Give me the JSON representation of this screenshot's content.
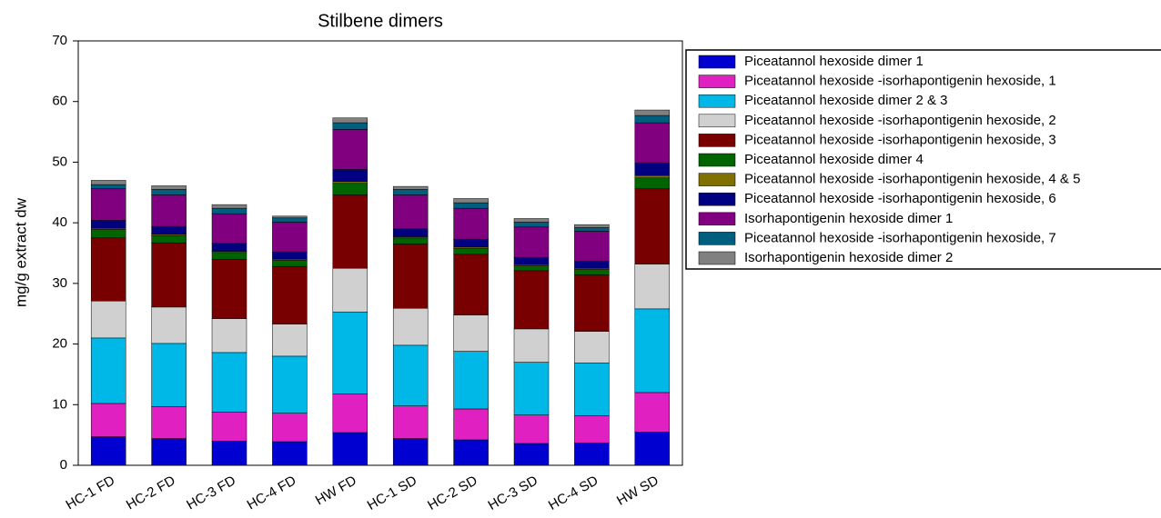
{
  "chart_data": {
    "type": "stacked_bar",
    "title": "Stilbene dimers",
    "ylabel": "mg/g extract dw",
    "categories": [
      "HC-1 FD",
      "HC-2 FD",
      "HC-3 FD",
      "HC-4 FD",
      "HW FD",
      "HC-1 SD",
      "HC-2 SD",
      "HC-3 SD",
      "HC-4 SD",
      "HW SD"
    ],
    "ylim": [
      0,
      70
    ],
    "yticks": [
      0,
      10,
      20,
      30,
      40,
      50,
      60,
      70
    ],
    "legend": "outside-right",
    "series": [
      {
        "name": "Piceatannol hexoside dimer 1",
        "color": "#0000d0",
        "values": [
          4.7,
          4.4,
          4.0,
          3.9,
          5.4,
          4.4,
          4.2,
          3.6,
          3.7,
          5.5
        ]
      },
      {
        "name": "Piceatannol hexoside -isorhapontigenin hexoside, 1",
        "color": "#e020c0",
        "values": [
          5.5,
          5.3,
          4.8,
          4.7,
          6.4,
          5.4,
          5.1,
          4.7,
          4.5,
          6.5
        ]
      },
      {
        "name": "Piceatannol hexoside dimer 2 & 3",
        "color": "#00b8e8",
        "values": [
          10.8,
          10.4,
          9.8,
          9.4,
          13.5,
          10.0,
          9.5,
          8.7,
          8.7,
          13.8
        ]
      },
      {
        "name": "Piceatannol hexoside -isorhapontigenin hexoside, 2",
        "color": "#d0d0d0",
        "values": [
          6.1,
          6.0,
          5.6,
          5.3,
          7.2,
          6.1,
          6.0,
          5.5,
          5.2,
          7.4
        ]
      },
      {
        "name": "Piceatannol hexoside -isorhapontigenin hexoside, 3",
        "color": "#780000",
        "values": [
          10.4,
          10.6,
          9.8,
          9.5,
          12.1,
          10.6,
          10.0,
          9.6,
          9.3,
          12.4
        ]
      },
      {
        "name": "Piceatannol hexoside dimer 4",
        "color": "#006400",
        "values": [
          1.4,
          1.2,
          1.1,
          1.0,
          1.9,
          1.0,
          1.0,
          0.8,
          0.9,
          1.8
        ]
      },
      {
        "name": "Piceatannol hexoside -isorhapontigenin hexoside, 4 & 5",
        "color": "#807000",
        "values": [
          0.2,
          0.2,
          0.2,
          0.2,
          0.3,
          0.2,
          0.2,
          0.2,
          0.2,
          0.4
        ]
      },
      {
        "name": "Piceatannol hexoside -isorhapontigenin hexoside, 6",
        "color": "#000080",
        "values": [
          1.3,
          1.3,
          1.3,
          1.2,
          2.0,
          1.3,
          1.3,
          1.2,
          1.2,
          2.1
        ]
      },
      {
        "name": "Isorhapontigenin hexoside dimer 1",
        "color": "#800080",
        "values": [
          5.2,
          5.2,
          4.9,
          4.9,
          6.6,
          5.6,
          5.1,
          5.0,
          4.9,
          6.6
        ]
      },
      {
        "name": "Piceatannol hexoside -isorhapontigenin hexoside, 7",
        "color": "#005f7f",
        "values": [
          0.7,
          0.9,
          0.9,
          0.7,
          1.1,
          0.9,
          0.9,
          0.8,
          0.6,
          1.2
        ]
      },
      {
        "name": "Isorhapontigenin hexoside dimer 2",
        "color": "#808080",
        "values": [
          0.7,
          0.6,
          0.6,
          0.3,
          0.8,
          0.5,
          0.7,
          0.6,
          0.5,
          0.9
        ]
      }
    ]
  }
}
